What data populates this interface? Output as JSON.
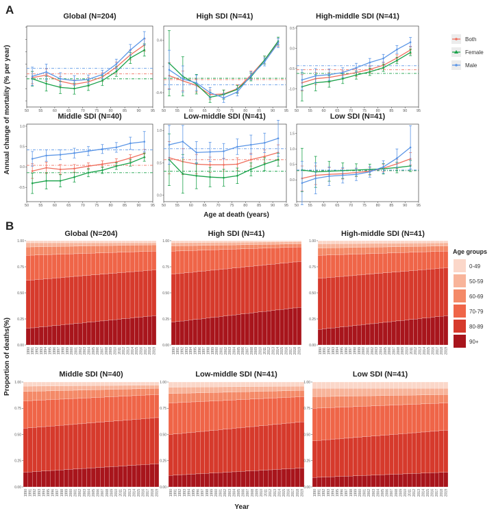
{
  "panel_labels": {
    "a": "A",
    "b": "B"
  },
  "a_ylabel": "Annual change of mortality (% per year)",
  "a_xlabel": "Age at death (years)",
  "b_ylabel": "Proportion of deaths(%)",
  "b_xlabel": "Year",
  "a_legend": [
    {
      "label": "Both",
      "color": "#ef6f5e"
    },
    {
      "label": "Female",
      "color": "#1aa24a"
    },
    {
      "label": "Male",
      "color": "#5a95e6"
    }
  ],
  "b_legend_title": "Age groups",
  "b_legend": [
    {
      "label": "0-49",
      "color": "#fbd7c9"
    },
    {
      "label": "50-59",
      "color": "#f8b49a"
    },
    {
      "label": "60-69",
      "color": "#f48a68"
    },
    {
      "label": "70-79",
      "color": "#ef6548"
    },
    {
      "label": "80-89",
      "color": "#d63a2c"
    },
    {
      "label": "90+",
      "color": "#a8151c"
    }
  ],
  "chart_data": [
    {
      "type": "line",
      "title": "Global (N=204)",
      "ylim": [
        -0.7,
        0.62
      ],
      "yticks": [
        -0.6,
        -0.4,
        -0.2,
        0,
        0.2,
        0.4,
        0.6
      ],
      "yticklabels": [
        "",
        "",
        "",
        "",
        "",
        "",
        ""
      ],
      "x": [
        52,
        57,
        62,
        67,
        72,
        77,
        82,
        87,
        92
      ],
      "xticks": [
        50,
        55,
        60,
        65,
        70,
        75,
        80,
        85,
        90,
        95
      ],
      "xlabel": "Age at death (years)",
      "ylabel": "Annual change of mortality (% per year)",
      "series": [
        {
          "name": "Both",
          "values": [
            -0.22,
            -0.18,
            -0.28,
            -0.33,
            -0.29,
            -0.21,
            -0.05,
            0.15,
            0.31
          ],
          "err": [
            0.1,
            0.1,
            0.08,
            0.07,
            0.07,
            0.07,
            0.08,
            0.08,
            0.1
          ],
          "mean": -0.16
        },
        {
          "name": "Female",
          "values": [
            -0.24,
            -0.32,
            -0.38,
            -0.4,
            -0.35,
            -0.27,
            -0.12,
            0.1,
            0.23
          ],
          "err": [
            0.12,
            0.12,
            0.1,
            0.09,
            0.08,
            0.08,
            0.08,
            0.09,
            0.1
          ],
          "mean": -0.24
        },
        {
          "name": "Male",
          "values": [
            -0.2,
            -0.13,
            -0.24,
            -0.27,
            -0.25,
            -0.17,
            0.0,
            0.23,
            0.42
          ],
          "err": [
            0.15,
            0.13,
            0.1,
            0.08,
            0.07,
            0.07,
            0.08,
            0.09,
            0.11
          ],
          "mean": -0.07
        }
      ]
    },
    {
      "type": "line",
      "title": "High SDI (N=41)",
      "ylim": [
        -0.62,
        0.62
      ],
      "yticks": [
        -0.4,
        0.0,
        0.4
      ],
      "yticklabels": [
        "-0.4",
        "",
        "0.4"
      ],
      "x": [
        52,
        57,
        62,
        67,
        72,
        77,
        82,
        87,
        92
      ],
      "xticks": [
        50,
        55,
        60,
        65,
        70,
        75,
        80,
        85,
        90,
        95
      ],
      "xlabel": "Age at death (years)",
      "ylabel": "Annual change of mortality (% per year)",
      "series": [
        {
          "name": "Both",
          "values": [
            -0.14,
            -0.22,
            -0.29,
            -0.43,
            -0.42,
            -0.34,
            -0.13,
            0.1,
            0.37
          ],
          "err": [
            0.2,
            0.15,
            0.1,
            0.07,
            0.06,
            0.06,
            0.06,
            0.06,
            0.06
          ],
          "mean": -0.2
        },
        {
          "name": "Female",
          "values": [
            0.05,
            -0.15,
            -0.27,
            -0.47,
            -0.43,
            -0.35,
            -0.16,
            0.1,
            0.39
          ],
          "err": [
            0.5,
            0.3,
            0.15,
            0.08,
            0.07,
            0.06,
            0.06,
            0.06,
            0.06
          ],
          "mean": -0.18
        },
        {
          "name": "Male",
          "values": [
            -0.05,
            -0.19,
            -0.25,
            -0.4,
            -0.48,
            -0.39,
            -0.14,
            0.07,
            0.36
          ],
          "err": [
            0.3,
            0.2,
            0.12,
            0.08,
            0.07,
            0.06,
            0.06,
            0.06,
            0.07
          ],
          "mean": -0.28
        }
      ]
    },
    {
      "type": "line",
      "title": "High-middle SDI (N=41)",
      "ylim": [
        -1.45,
        0.55
      ],
      "yticks": [
        -1.0,
        -0.5,
        0.0,
        0.5
      ],
      "yticklabels": [
        "-1.0",
        "-0.5",
        "0.0",
        "0.5"
      ],
      "x": [
        52,
        57,
        62,
        67,
        72,
        77,
        82,
        87,
        92
      ],
      "xticks": [
        50,
        55,
        60,
        65,
        70,
        75,
        80,
        85,
        90,
        95
      ],
      "xlabel": "Age at death (years)",
      "ylabel": "Annual change of mortality (% per year)",
      "series": [
        {
          "name": "Both",
          "values": [
            -0.85,
            -0.75,
            -0.72,
            -0.66,
            -0.6,
            -0.52,
            -0.42,
            -0.24,
            -0.04
          ],
          "err": [
            0.2,
            0.15,
            0.12,
            0.1,
            0.09,
            0.09,
            0.08,
            0.08,
            0.09
          ],
          "mean": -0.53
        },
        {
          "name": "Female",
          "values": [
            -0.95,
            -0.85,
            -0.82,
            -0.75,
            -0.66,
            -0.58,
            -0.48,
            -0.3,
            -0.1
          ],
          "err": [
            0.35,
            0.2,
            0.14,
            0.12,
            0.1,
            0.09,
            0.09,
            0.08,
            0.08
          ],
          "mean": -0.62
        },
        {
          "name": "Male",
          "values": [
            -0.78,
            -0.68,
            -0.65,
            -0.6,
            -0.48,
            -0.35,
            -0.25,
            -0.03,
            0.15
          ],
          "err": [
            0.25,
            0.18,
            0.14,
            0.12,
            0.11,
            0.1,
            0.1,
            0.1,
            0.12
          ],
          "mean": -0.43
        }
      ]
    },
    {
      "type": "line",
      "title": "Middle SDI (N=40)",
      "ylim": [
        -0.85,
        1.05
      ],
      "yticks": [
        -0.5,
        0.0,
        0.5,
        1.0
      ],
      "yticklabels": [
        "-0.5",
        "0.0",
        "0.5",
        "1.0"
      ],
      "x": [
        52,
        57,
        62,
        67,
        72,
        77,
        82,
        87,
        92
      ],
      "xticks": [
        50,
        55,
        60,
        65,
        70,
        75,
        80,
        85,
        90,
        95
      ],
      "xlabel": "Age at death (years)",
      "ylabel": "Annual change of mortality (% per year)",
      "series": [
        {
          "name": "Both",
          "values": [
            -0.1,
            -0.02,
            -0.06,
            -0.04,
            0.02,
            0.07,
            0.12,
            0.22,
            0.33
          ],
          "err": [
            0.18,
            0.14,
            0.12,
            0.1,
            0.08,
            0.08,
            0.08,
            0.08,
            0.1
          ],
          "mean": 0.04
        },
        {
          "name": "Female",
          "values": [
            -0.4,
            -0.34,
            -0.34,
            -0.25,
            -0.14,
            -0.08,
            0.02,
            0.1,
            0.24
          ],
          "err": [
            0.25,
            0.2,
            0.15,
            0.12,
            0.1,
            0.08,
            0.08,
            0.08,
            0.1
          ],
          "mean": -0.14
        },
        {
          "name": "Male",
          "values": [
            0.2,
            0.28,
            0.3,
            0.34,
            0.39,
            0.44,
            0.48,
            0.58,
            0.62
          ],
          "err": [
            0.18,
            0.14,
            0.12,
            0.12,
            0.11,
            0.11,
            0.12,
            0.15,
            0.25
          ],
          "mean": 0.42
        }
      ]
    },
    {
      "type": "line",
      "title": "Low-middle SDI (N=41)",
      "ylim": [
        -0.1,
        1.1
      ],
      "yticks": [
        0.0,
        0.5,
        1.0
      ],
      "yticklabels": [
        "0.0",
        "0.5",
        "1.0"
      ],
      "x": [
        52,
        57,
        62,
        67,
        72,
        77,
        82,
        87,
        92
      ],
      "xticks": [
        50,
        55,
        60,
        65,
        70,
        75,
        80,
        85,
        90,
        95
      ],
      "xlabel": "Age at death (years)",
      "ylabel": "Annual change of mortality (% per year)",
      "series": [
        {
          "name": "Both",
          "values": [
            0.58,
            0.52,
            0.48,
            0.47,
            0.47,
            0.48,
            0.55,
            0.6,
            0.66
          ],
          "err": [
            0.25,
            0.2,
            0.15,
            0.12,
            0.1,
            0.1,
            0.1,
            0.1,
            0.12
          ],
          "mean": 0.55
        },
        {
          "name": "Female",
          "values": [
            0.55,
            0.33,
            0.3,
            0.28,
            0.27,
            0.3,
            0.4,
            0.48,
            0.55
          ],
          "err": [
            0.4,
            0.3,
            0.2,
            0.15,
            0.13,
            0.12,
            0.1,
            0.1,
            0.1
          ],
          "mean": 0.37
        },
        {
          "name": "Male",
          "values": [
            0.78,
            0.83,
            0.66,
            0.67,
            0.68,
            0.75,
            0.78,
            0.81,
            0.88
          ],
          "err": [
            0.3,
            0.25,
            0.17,
            0.15,
            0.12,
            0.12,
            0.15,
            0.15,
            0.28
          ],
          "mean": 0.72
        }
      ]
    },
    {
      "type": "line",
      "title": "Low SDI (N=41)",
      "ylim": [
        -0.7,
        1.8
      ],
      "yticks": [
        0.0,
        0.5,
        1.0,
        1.5
      ],
      "yticklabels": [
        "0.0",
        "0.5",
        "1.0",
        "1.5"
      ],
      "x": [
        52,
        57,
        62,
        67,
        72,
        77,
        82,
        87,
        92
      ],
      "xticks": [
        50,
        55,
        60,
        65,
        70,
        75,
        80,
        85,
        90,
        95
      ],
      "xlabel": "Age at death (years)",
      "ylabel": "Annual change of mortality (% per year)",
      "series": [
        {
          "name": "Both",
          "values": [
            0.05,
            0.15,
            0.18,
            0.2,
            0.24,
            0.28,
            0.38,
            0.52,
            0.68
          ],
          "err": [
            0.4,
            0.3,
            0.22,
            0.17,
            0.13,
            0.12,
            0.12,
            0.15,
            0.2
          ],
          "mean": 0.3
        },
        {
          "name": "Female",
          "values": [
            0.32,
            0.26,
            0.28,
            0.3,
            0.32,
            0.34,
            0.36,
            0.4,
            0.45
          ],
          "err": [
            0.7,
            0.5,
            0.32,
            0.25,
            0.2,
            0.17,
            0.17,
            0.17,
            0.18
          ],
          "mean": 0.3
        },
        {
          "name": "Male",
          "values": [
            -0.1,
            0.05,
            0.12,
            0.15,
            0.18,
            0.26,
            0.42,
            0.7,
            1.05
          ],
          "err": [
            0.7,
            0.5,
            0.3,
            0.25,
            0.2,
            0.17,
            0.2,
            0.3,
            0.7
          ],
          "mean": 0.32
        }
      ]
    },
    {
      "type": "stacked_bar",
      "title": "Global (N=204)",
      "years": [
        "1990",
        "1991",
        "1992",
        "1993",
        "1994",
        "1995",
        "1996",
        "1997",
        "1998",
        "1999",
        "2000",
        "2001",
        "2002",
        "2003",
        "2004",
        "2005",
        "2006",
        "2007",
        "2008",
        "2009",
        "2010",
        "2011",
        "2012",
        "2013",
        "2014",
        "2015",
        "2016",
        "2017",
        "2018",
        "2019"
      ],
      "yticks": [
        "0.00",
        "0.25",
        "0.50",
        "0.75",
        "1.00"
      ],
      "xlabel": "Year",
      "ylabel": "Proportion of deaths(%)",
      "groups": [
        "0-49",
        "50-59",
        "60-69",
        "70-79",
        "80-89",
        "90+"
      ],
      "cum_start": [
        0.98,
        0.94,
        0.86,
        0.62,
        0.16
      ],
      "cum_end": [
        0.98,
        0.96,
        0.9,
        0.72,
        0.28
      ]
    },
    {
      "type": "stacked_bar",
      "title": "High SDI (N=41)",
      "years": [
        "1990",
        "1991",
        "1992",
        "1993",
        "1994",
        "1995",
        "1996",
        "1997",
        "1998",
        "1999",
        "2000",
        "2001",
        "2002",
        "2003",
        "2004",
        "2005",
        "2006",
        "2007",
        "2008",
        "2009",
        "2010",
        "2011",
        "2012",
        "2013",
        "2014",
        "2015",
        "2016",
        "2017",
        "2018",
        "2019"
      ],
      "yticks": [
        "0.00",
        "0.25",
        "0.50",
        "0.75",
        "1.00"
      ],
      "xlabel": "Year",
      "ylabel": "Proportion of deaths(%)",
      "groups": [
        "0-49",
        "50-59",
        "60-69",
        "70-79",
        "80-89",
        "90+"
      ],
      "cum_start": [
        0.98,
        0.95,
        0.9,
        0.68,
        0.22
      ],
      "cum_end": [
        0.99,
        0.97,
        0.94,
        0.8,
        0.36
      ]
    },
    {
      "type": "stacked_bar",
      "title": "High-middle SDI (N=41)",
      "years": [
        "1990",
        "1991",
        "1992",
        "1993",
        "1994",
        "1995",
        "1996",
        "1997",
        "1998",
        "1999",
        "2000",
        "2001",
        "2002",
        "2003",
        "2004",
        "2005",
        "2006",
        "2007",
        "2008",
        "2009",
        "2010",
        "2011",
        "2012",
        "2013",
        "2014",
        "2015",
        "2016",
        "2017",
        "2018",
        "2019"
      ],
      "yticks": [
        "0.00",
        "0.25",
        "0.50",
        "0.75",
        "1.00"
      ],
      "xlabel": "Year",
      "ylabel": "Proportion of deaths(%)",
      "groups": [
        "0-49",
        "50-59",
        "60-69",
        "70-79",
        "80-89",
        "90+"
      ],
      "cum_start": [
        0.97,
        0.93,
        0.86,
        0.64,
        0.15
      ],
      "cum_end": [
        0.98,
        0.95,
        0.9,
        0.74,
        0.28
      ]
    },
    {
      "type": "stacked_bar",
      "title": "Middle SDI (N=40)",
      "years": [
        "1990",
        "1991",
        "1992",
        "1993",
        "1994",
        "1995",
        "1996",
        "1997",
        "1998",
        "1999",
        "2000",
        "2001",
        "2002",
        "2003",
        "2004",
        "2005",
        "2006",
        "2007",
        "2008",
        "2009",
        "2010",
        "2011",
        "2012",
        "2013",
        "2014",
        "2015",
        "2016",
        "2017",
        "2018",
        "2019"
      ],
      "yticks": [
        "0.00",
        "0.25",
        "0.50",
        "0.75",
        "1.00"
      ],
      "xlabel": "Year",
      "ylabel": "Proportion of deaths(%)",
      "groups": [
        "0-49",
        "50-59",
        "60-69",
        "70-79",
        "80-89",
        "90+"
      ],
      "cum_start": [
        0.96,
        0.91,
        0.82,
        0.56,
        0.14
      ],
      "cum_end": [
        0.97,
        0.94,
        0.88,
        0.66,
        0.22
      ]
    },
    {
      "type": "stacked_bar",
      "title": "Low-middle SDI (N=41)",
      "years": [
        "1990",
        "1991",
        "1992",
        "1993",
        "1994",
        "1995",
        "1996",
        "1997",
        "1998",
        "1999",
        "2000",
        "2001",
        "2002",
        "2003",
        "2004",
        "2005",
        "2006",
        "2007",
        "2008",
        "2009",
        "2010",
        "2011",
        "2012",
        "2013",
        "2014",
        "2015",
        "2016",
        "2017",
        "2018",
        "2019"
      ],
      "yticks": [
        "0.00",
        "0.25",
        "0.50",
        "0.75",
        "1.00"
      ],
      "xlabel": "Year",
      "ylabel": "Proportion of deaths(%)",
      "groups": [
        "0-49",
        "50-59",
        "60-69",
        "70-79",
        "80-89",
        "90+"
      ],
      "cum_start": [
        0.95,
        0.89,
        0.8,
        0.5,
        0.11
      ],
      "cum_end": [
        0.96,
        0.92,
        0.86,
        0.62,
        0.18
      ]
    },
    {
      "type": "stacked_bar",
      "title": "Low SDI (N=41)",
      "years": [
        "1990",
        "1991",
        "1992",
        "1993",
        "1994",
        "1995",
        "1996",
        "1997",
        "1998",
        "1999",
        "2000",
        "2001",
        "2002",
        "2003",
        "2004",
        "2005",
        "2006",
        "2007",
        "2008",
        "2009",
        "2010",
        "2011",
        "2012",
        "2013",
        "2014",
        "2015",
        "2016",
        "2017",
        "2018",
        "2019"
      ],
      "yticks": [
        "0.00",
        "0.25",
        "0.50",
        "0.75",
        "1.00"
      ],
      "xlabel": "Year",
      "ylabel": "Proportion of deaths(%)",
      "groups": [
        "0-49",
        "50-59",
        "60-69",
        "70-79",
        "80-89",
        "90+"
      ],
      "cum_start": [
        0.94,
        0.86,
        0.75,
        0.44,
        0.09
      ],
      "cum_end": [
        0.94,
        0.88,
        0.8,
        0.54,
        0.14
      ]
    }
  ]
}
